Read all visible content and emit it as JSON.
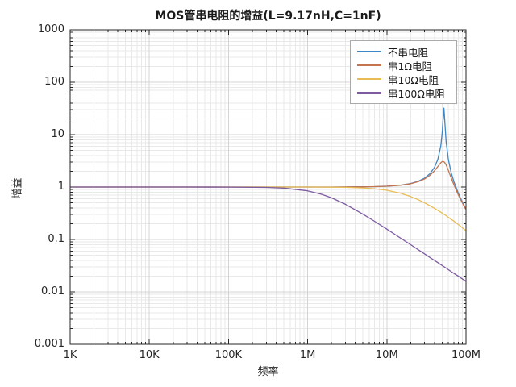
{
  "chart_data": {
    "type": "line",
    "title": "MOS管串电阻的增益(L=9.17nH,C=1nF)",
    "xlabel": "频率",
    "ylabel": "增益",
    "xscale": "log",
    "yscale": "log",
    "xlim": [
      1000,
      100000000
    ],
    "ylim": [
      0.001,
      1000
    ],
    "xticks": [
      1000,
      10000,
      100000,
      1000000,
      10000000,
      100000000
    ],
    "xticklabels": [
      "1K",
      "10K",
      "100K",
      "1M",
      "10M",
      "100M"
    ],
    "yticks": [
      0.001,
      0.01,
      0.1,
      1,
      10,
      100,
      1000
    ],
    "yticklabels": [
      "0.001",
      "0.01",
      "0.1",
      "1",
      "10",
      "100",
      "1000"
    ],
    "grid": true,
    "legend_position": "top-right",
    "axis_color": "#262626",
    "x": [
      1000,
      3000,
      10000,
      30000,
      100000,
      300000,
      500000,
      1000000,
      1500000,
      2000000,
      3000000,
      5000000,
      7000000,
      10000000,
      15000000,
      20000000,
      25000000,
      30000000,
      35000000,
      40000000,
      44000000,
      48000000,
      50000000,
      51000000,
      52000000,
      52600000,
      53200000,
      54000000,
      56000000,
      60000000,
      65000000,
      70000000,
      80000000,
      90000000,
      100000000
    ],
    "series": [
      {
        "name": "不串电阻",
        "color": "#3d86c6",
        "y": [
          1,
          1,
          1,
          1,
          1,
          1,
          1,
          1.0004,
          1.0008,
          1.0014,
          1.0033,
          1.0091,
          1.018,
          1.038,
          1.089,
          1.169,
          1.293,
          1.483,
          1.797,
          2.377,
          3.343,
          6.028,
          10.53,
          17.1,
          25,
          32,
          25,
          17.9,
          7.39,
          3.3,
          1.888,
          1.292,
          0.759,
          0.518,
          0.382
        ]
      },
      {
        "name": "串1Ω电阻",
        "color": "#c4744e",
        "y": [
          1,
          1,
          1,
          1,
          1,
          1,
          1,
          1.0003,
          1.0008,
          1.0014,
          1.0032,
          1.0087,
          1.017,
          1.035,
          1.083,
          1.157,
          1.267,
          1.429,
          1.671,
          2.041,
          2.455,
          2.905,
          3.048,
          3.07,
          3.054,
          3.028,
          2.983,
          2.908,
          2.653,
          2.067,
          1.495,
          1.123,
          0.709,
          0.497,
          0.371
        ]
      },
      {
        "name": "串10Ω电阻",
        "color": "#e9bd55",
        "y": [
          1,
          1,
          1,
          1,
          1,
          0.9998,
          0.9996,
          0.9984,
          0.9964,
          0.9936,
          0.9858,
          0.9617,
          0.9292,
          0.869,
          0.76,
          0.658,
          0.571,
          0.4995,
          0.4408,
          0.3925,
          0.3596,
          0.3311,
          0.3182,
          0.312,
          0.3061,
          0.3027,
          0.2993,
          0.2947,
          0.284,
          0.2644,
          0.2428,
          0.2239,
          0.1925,
          0.1673,
          0.1469
        ]
      },
      {
        "name": "串100Ω电阻",
        "color": "#7d5ba0",
        "y": [
          1,
          1,
          1,
          0.9998,
          0.998,
          0.9827,
          0.954,
          0.847,
          0.728,
          0.623,
          0.469,
          0.3036,
          0.2219,
          0.1573,
          0.1056,
          0.0794,
          0.0636,
          0.053,
          0.04546,
          0.03978,
          0.03617,
          0.03316,
          0.0318,
          0.0312,
          0.0306,
          0.03026,
          0.0299,
          0.0295,
          0.0284,
          0.0265,
          0.0243,
          0.0227,
          0.0199,
          0.0177,
          0.0159
        ]
      }
    ]
  }
}
